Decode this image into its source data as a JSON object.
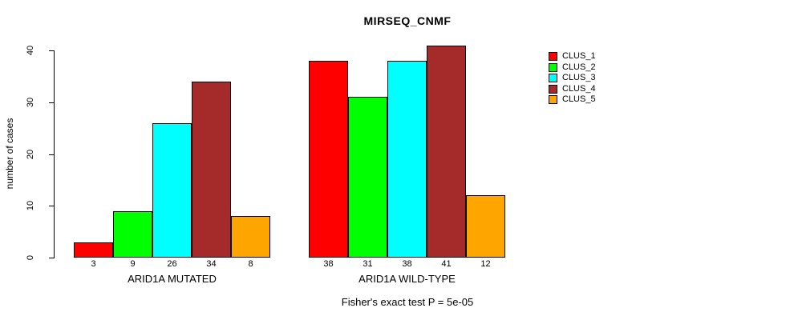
{
  "chart_data": {
    "type": "bar",
    "title": "MIRSEQ_CNMF",
    "ylabel": "number of cases",
    "xlabel": "",
    "ylim": [
      0,
      40
    ],
    "yticks": [
      0,
      10,
      20,
      30,
      40
    ],
    "grid": false,
    "categories": [
      "ARID1A MUTATED",
      "ARID1A WILD-TYPE"
    ],
    "series": [
      {
        "name": "CLUS_1",
        "color": "#FF0000",
        "values": [
          3,
          38
        ]
      },
      {
        "name": "CLUS_2",
        "color": "#00FF00",
        "values": [
          9,
          31
        ]
      },
      {
        "name": "CLUS_3",
        "color": "#00FFFF",
        "values": [
          26,
          38
        ]
      },
      {
        "name": "CLUS_4",
        "color": "#A52A2A",
        "values": [
          34,
          41
        ]
      },
      {
        "name": "CLUS_5",
        "color": "#FFA500",
        "values": [
          8,
          12
        ]
      }
    ],
    "bar_value_labels_shown": true,
    "legend_position": "right",
    "annotation": "Fisher's exact test P = 5e-05",
    "axis_color": "#000000",
    "background_color": "#FFFFFF"
  }
}
